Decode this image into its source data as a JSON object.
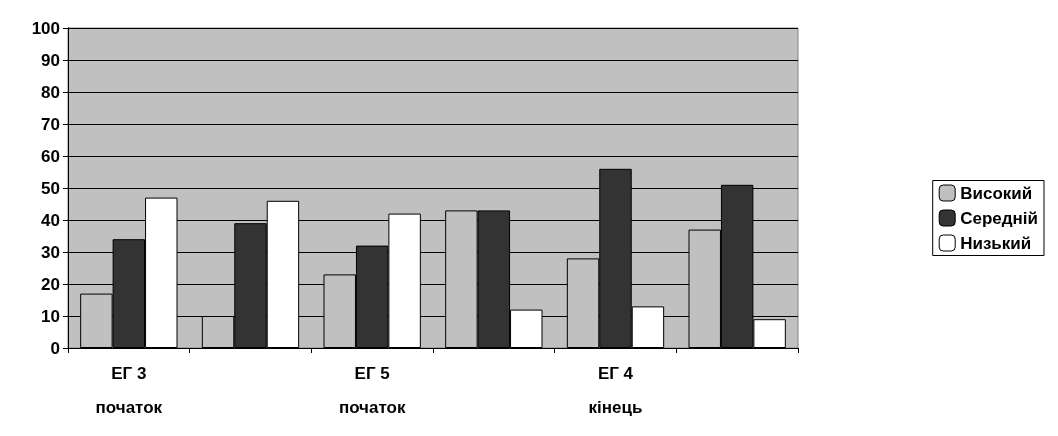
{
  "chart_data": {
    "type": "bar",
    "categories": [
      "ЕГ 3\nпочаток",
      null,
      "ЕГ 5\nпочаток",
      null,
      "ЕГ 4\nкінець",
      null
    ],
    "series": [
      {
        "name": "Високий",
        "color": "#c0c0c0",
        "values": [
          17,
          10,
          23,
          43,
          28,
          37
        ]
      },
      {
        "name": "Середній",
        "color": "#333333",
        "values": [
          34,
          39,
          32,
          43,
          56,
          51
        ]
      },
      {
        "name": "Низький",
        "color": "#ffffff",
        "values": [
          47,
          46,
          42,
          12,
          13,
          9
        ]
      }
    ],
    "ylim": [
      0,
      100
    ],
    "yticks": [
      0,
      10,
      20,
      30,
      40,
      50,
      60,
      70,
      80,
      90,
      100
    ],
    "grid": "y",
    "legend": "right"
  }
}
